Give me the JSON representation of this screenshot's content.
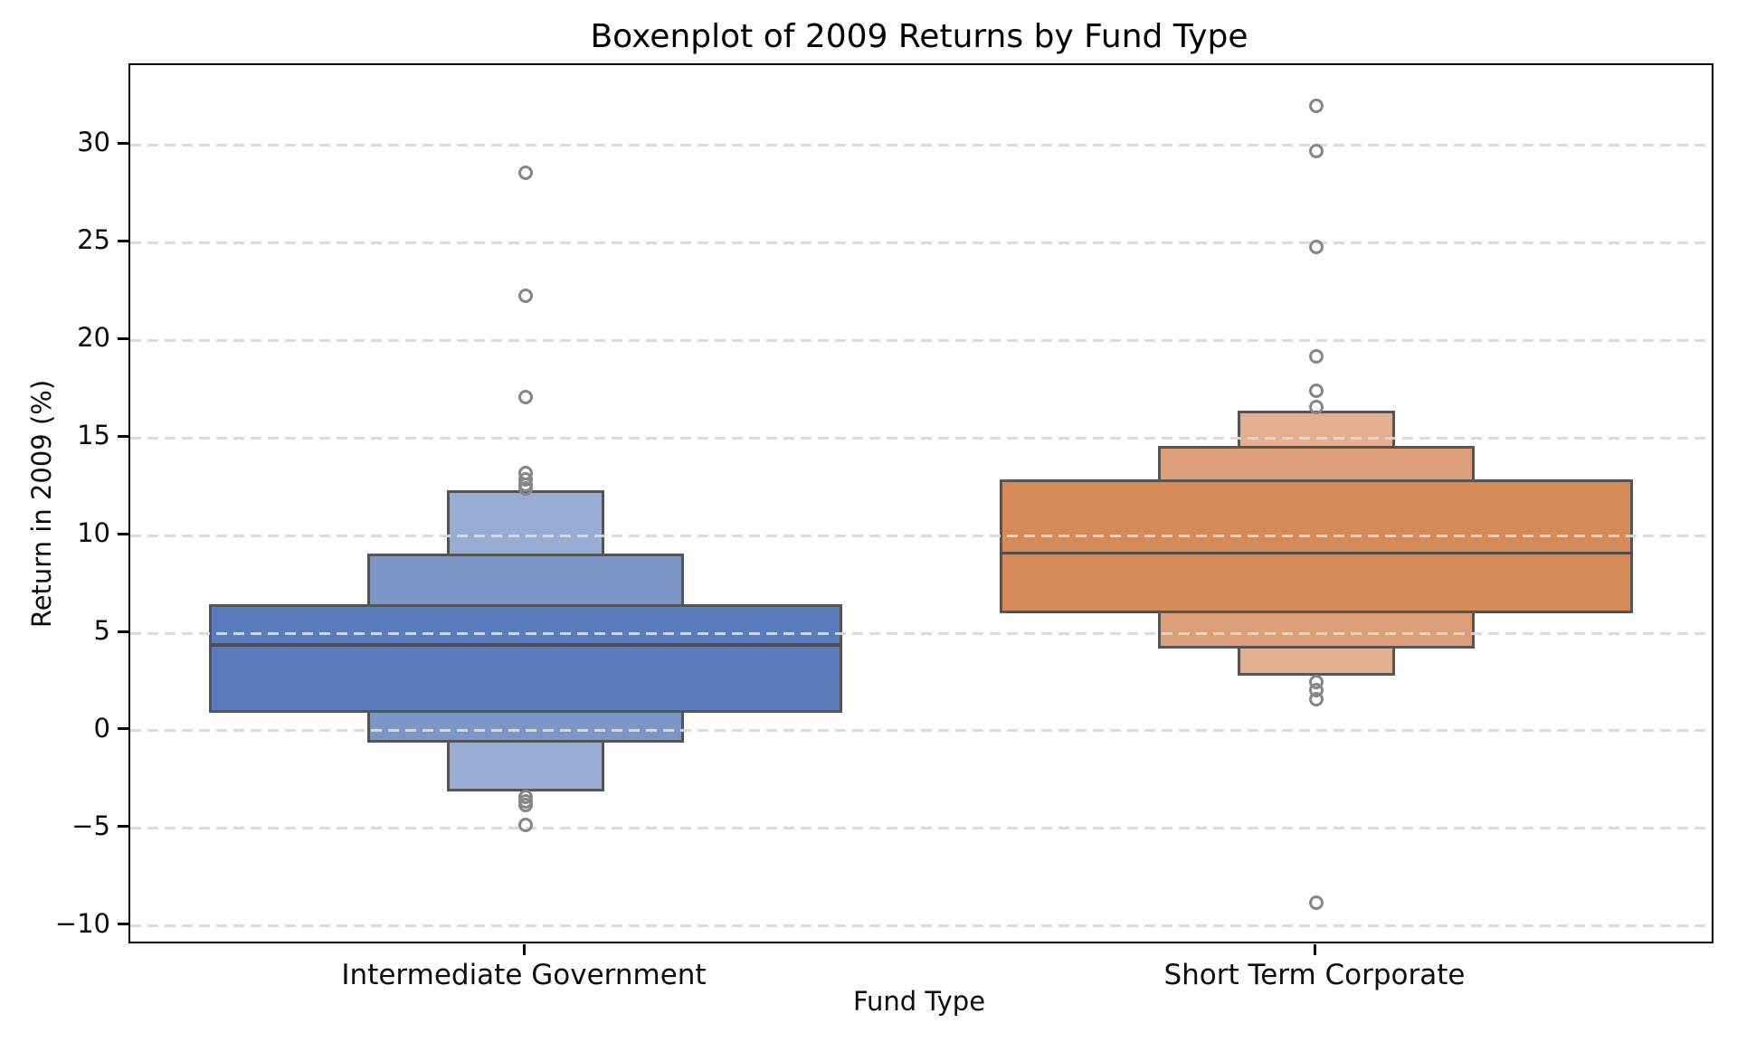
{
  "chart_data": {
    "type": "boxen",
    "title": "Boxenplot of 2009 Returns by Fund Type",
    "xlabel": "Fund Type",
    "ylabel": "Return in 2009 (%)",
    "ylim": [
      -10.8,
      34.1
    ],
    "yticks": [
      30,
      25,
      20,
      15,
      10,
      5,
      0,
      -5,
      -10
    ],
    "grid": "horizontal-dashed",
    "legend": "none",
    "box_width_fraction_of_slot": 0.8,
    "edge_color": "#555555",
    "outlier_color": "#868686",
    "categories": [
      {
        "name": "Intermediate Government",
        "color_levels": [
          "#5a7cbd",
          "#7d96c9",
          "#97abd3"
        ],
        "median": 4.4,
        "boxes": [
          {
            "level": 1,
            "lo": 0.9,
            "hi": 6.5,
            "width": 1.0
          },
          {
            "level": 2,
            "lo": -0.6,
            "hi": 9.1,
            "width": 0.5
          },
          {
            "level": 3,
            "lo": -3.1,
            "hi": 12.3,
            "width": 0.25
          }
        ],
        "outliers": [
          28.6,
          22.3,
          17.1,
          13.2,
          12.9,
          12.6,
          12.4,
          -3.4,
          -3.6,
          -3.8,
          -4.8
        ]
      },
      {
        "name": "Short Term Corporate",
        "color_levels": [
          "#d58a58",
          "#dd9f78",
          "#e3af90"
        ],
        "median": 9.1,
        "boxes": [
          {
            "level": 1,
            "lo": 6.0,
            "hi": 12.9,
            "width": 1.0
          },
          {
            "level": 2,
            "lo": 4.2,
            "hi": 14.6,
            "width": 0.5
          },
          {
            "level": 3,
            "lo": 2.8,
            "hi": 16.4,
            "width": 0.25
          }
        ],
        "outliers": [
          32.0,
          29.7,
          24.8,
          19.2,
          17.4,
          16.6,
          2.5,
          2.1,
          1.6,
          -8.8
        ]
      }
    ]
  }
}
